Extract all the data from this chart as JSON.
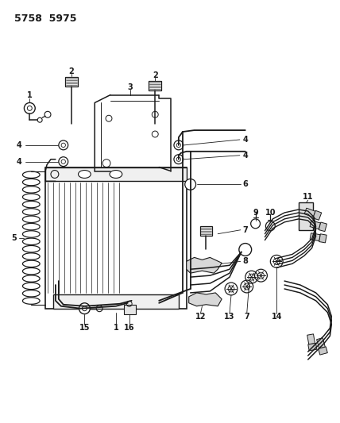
{
  "title": "5758  5975",
  "bg_color": "#ffffff",
  "lc": "#1a1a1a",
  "title_fontsize": 9,
  "label_fontsize": 7,
  "fig_w": 4.28,
  "fig_h": 5.33,
  "dpi": 100
}
